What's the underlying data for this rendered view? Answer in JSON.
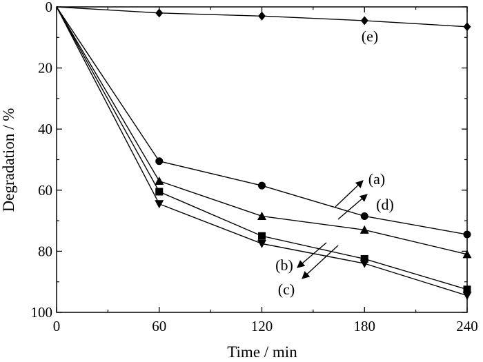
{
  "chart_data": {
    "type": "line",
    "xlabel": "Time / min",
    "ylabel": "Degradation / %",
    "xlim": [
      0,
      240
    ],
    "ylim": [
      0,
      100
    ],
    "y_inverted": true,
    "grid": false,
    "x_ticks": [
      0,
      60,
      120,
      180,
      240
    ],
    "y_ticks": [
      0,
      20,
      40,
      60,
      80,
      100
    ],
    "series": [
      {
        "marker": "circle",
        "x": [
          0,
          60,
          120,
          180,
          240
        ],
        "values": [
          0,
          50.5,
          58.5,
          68.5,
          74.5
        ]
      },
      {
        "marker": "triangle-up",
        "x": [
          0,
          60,
          120,
          180,
          240
        ],
        "values": [
          0,
          57,
          68.5,
          73,
          81
        ]
      },
      {
        "marker": "square",
        "x": [
          0,
          60,
          120,
          180,
          240
        ],
        "values": [
          0,
          60.5,
          75,
          82.5,
          92.5
        ]
      },
      {
        "marker": "triangle-down",
        "x": [
          0,
          60,
          120,
          180,
          240
        ],
        "values": [
          0,
          64.5,
          77.5,
          84,
          94.5
        ]
      },
      {
        "marker": "diamond",
        "x": [
          0,
          60,
          120,
          180,
          240
        ],
        "values": [
          0,
          2,
          3,
          4.5,
          6.5
        ]
      }
    ],
    "annotations": [
      {
        "label": "(a)",
        "x": 160,
        "y": 64
      },
      {
        "label": "(d)",
        "x": 180,
        "y": 64
      },
      {
        "label": "(b)",
        "x": 124,
        "y": 84
      },
      {
        "label": "(c)",
        "x": 124,
        "y": 93
      },
      {
        "label": "(e)",
        "x": 180,
        "y": 10
      }
    ]
  }
}
